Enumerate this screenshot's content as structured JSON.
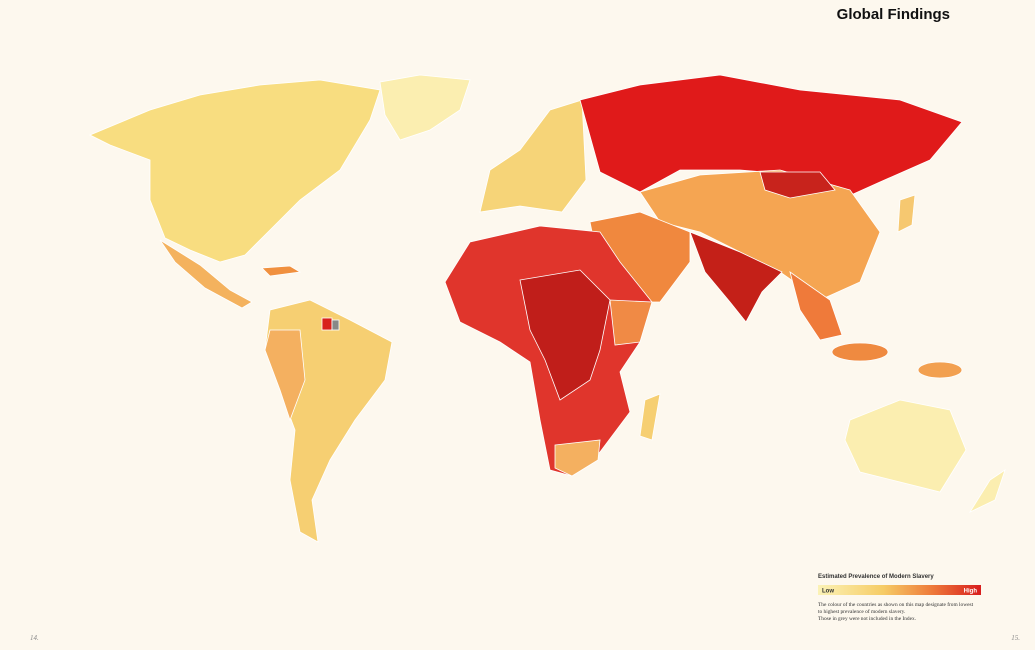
{
  "header": {
    "title": "Global Findings"
  },
  "legend": {
    "title": "Estimated Prevalence of Modern Slavery",
    "low": "Low",
    "high": "High",
    "note": [
      "The colour of the countries as shown on this map designate from lowest",
      "to highest prevalence of modern slavery.",
      "Those in grey were not included in the Index."
    ]
  },
  "page_numbers": [
    "14.",
    "15."
  ]
}
